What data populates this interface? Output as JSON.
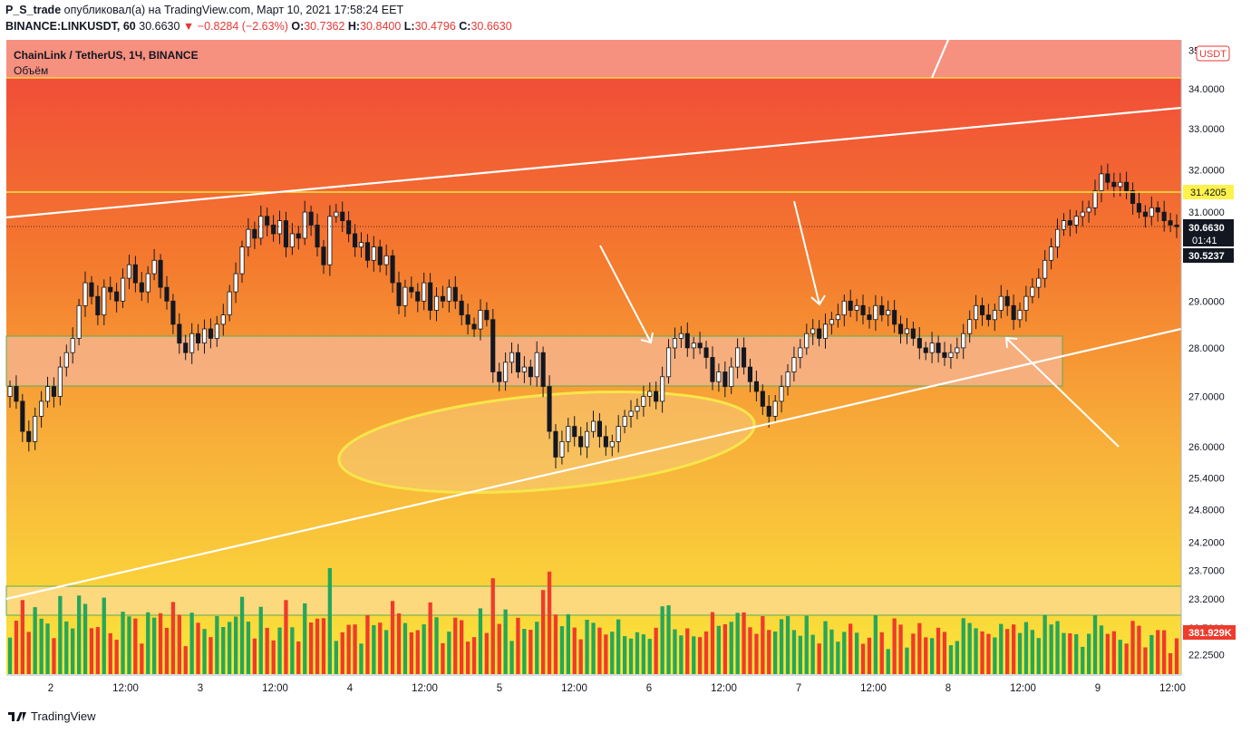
{
  "header": {
    "author": "P_S_trade",
    "published_text": "опубликовал(а) на TradingView.com, Март 10, 2021 17:58:24 EET",
    "symbol": "BINANCE:LINKUSDT, 60",
    "last": "30.6630",
    "change": "−0.8284 (−2.63%)",
    "o_label": "O:",
    "o_val": "30.7362",
    "h_label": "H:",
    "h_val": "30.8400",
    "l_label": "L:",
    "l_val": "30.4796",
    "c_label": "C:",
    "c_val": "30.6630"
  },
  "legend": {
    "title": "ChainLink / TetherUS, 1Ч, BINANCE",
    "volume": "Объём"
  },
  "currency_badge": "USDT",
  "footer": {
    "brand": "TradingView"
  },
  "colors": {
    "up": "#ffffff",
    "down": "#131722",
    "vol_up": "#26a65b",
    "vol_down": "#ef3b2c",
    "zone_band": "#f6b38a",
    "ellipse": "#f7e64a",
    "level_line": "#f5e642",
    "trend_line": "#ffffff"
  },
  "chart_data": {
    "type": "candlestick",
    "scale": "log",
    "ylim": [
      22.0,
      35.2
    ],
    "y_ticks": [
      "35.0000",
      "34.0000",
      "33.0000",
      "32.0000",
      "31.0000",
      "29.0000",
      "28.0000",
      "27.0000",
      "26.0000",
      "25.4000",
      "24.8000",
      "24.2000",
      "23.7000",
      "23.2000",
      "22.7000",
      "22.2500"
    ],
    "x_ticks": [
      "2",
      "12:00",
      "3",
      "12:00",
      "4",
      "12:00",
      "5",
      "12:00",
      "6",
      "12:00",
      "7",
      "12:00",
      "8",
      "12:00",
      "9",
      "12:00"
    ],
    "price_labels": {
      "level": "31.4205",
      "current": "30.6630",
      "countdown": "01:41",
      "previous": "30.5237",
      "volume": "381.929K"
    },
    "closes": [
      27.2,
      26.9,
      26.3,
      26.1,
      26.6,
      26.9,
      27.2,
      27.0,
      27.6,
      27.9,
      28.2,
      28.9,
      29.4,
      29.1,
      28.7,
      29.3,
      29.2,
      29.0,
      29.5,
      29.8,
      29.4,
      29.2,
      29.6,
      29.9,
      29.3,
      29.0,
      28.5,
      28.1,
      27.9,
      28.3,
      28.1,
      28.4,
      28.2,
      28.5,
      28.7,
      29.2,
      29.6,
      30.2,
      30.6,
      30.4,
      30.9,
      30.7,
      30.5,
      30.8,
      30.2,
      30.5,
      30.4,
      31.0,
      30.7,
      30.2,
      29.8,
      30.9,
      31.0,
      30.8,
      30.5,
      30.2,
      30.3,
      29.9,
      30.2,
      29.8,
      30.0,
      29.4,
      28.9,
      29.3,
      29.2,
      29.0,
      29.4,
      28.8,
      29.1,
      29.0,
      29.3,
      29.0,
      28.7,
      28.5,
      28.4,
      28.8,
      28.6,
      27.5,
      27.3,
      27.7,
      27.9,
      27.5,
      27.6,
      27.4,
      27.9,
      27.2,
      26.3,
      25.8,
      26.1,
      26.4,
      26.2,
      26.0,
      26.3,
      26.5,
      26.2,
      26.0,
      26.1,
      26.4,
      26.6,
      26.7,
      26.8,
      27.0,
      27.1,
      26.9,
      27.4,
      28.0,
      28.2,
      28.3,
      28.0,
      28.1,
      28.0,
      27.8,
      27.3,
      27.5,
      27.2,
      27.6,
      28.0,
      27.6,
      27.3,
      27.1,
      26.8,
      26.6,
      26.9,
      27.2,
      27.5,
      27.8,
      28.0,
      28.3,
      28.4,
      28.2,
      28.5,
      28.6,
      28.7,
      29.0,
      28.8,
      28.9,
      28.7,
      28.6,
      28.9,
      28.7,
      28.8,
      28.5,
      28.3,
      28.4,
      28.2,
      28.0,
      27.9,
      28.1,
      27.9,
      27.8,
      27.9,
      28.0,
      28.3,
      28.6,
      28.9,
      28.7,
      28.6,
      28.8,
      29.1,
      28.9,
      28.6,
      28.8,
      29.1,
      29.3,
      29.5,
      29.9,
      30.2,
      30.6,
      30.8,
      30.7,
      30.9,
      31.0,
      31.1,
      31.5,
      31.9,
      31.7,
      31.6,
      31.7,
      31.5,
      31.2,
      31.0,
      30.9,
      31.1,
      31.0,
      30.8,
      30.7,
      30.66
    ]
  }
}
